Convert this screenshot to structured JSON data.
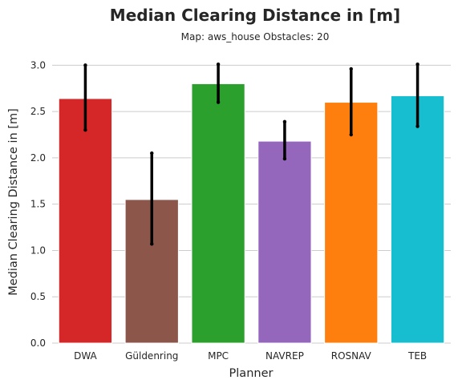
{
  "chart_data": {
    "type": "bar",
    "title": "Median Clearing Distance in [m]",
    "subtitle": "Map: aws_house Obstacles: 20",
    "xlabel": "Planner",
    "ylabel": "Median Clearing Distance in [m]",
    "ylim": [
      0,
      3.15
    ],
    "yticks": [
      "0.0",
      "0.5",
      "1.0",
      "1.5",
      "2.0",
      "2.5",
      "3.0"
    ],
    "grid": "horizontal",
    "categories": [
      "DWA",
      "Güldenring",
      "MPC",
      "NAVREP",
      "ROSNAV",
      "TEB"
    ],
    "values": [
      2.64,
      1.55,
      2.8,
      2.18,
      2.6,
      2.67
    ],
    "error_low": [
      2.3,
      1.07,
      2.6,
      1.99,
      2.25,
      2.34
    ],
    "error_high": [
      3.0,
      2.05,
      3.01,
      2.39,
      2.96,
      3.01
    ],
    "colors": [
      "#d62728",
      "#8c564b",
      "#2ca02c",
      "#9467bd",
      "#ff7f0e",
      "#17becf"
    ]
  }
}
